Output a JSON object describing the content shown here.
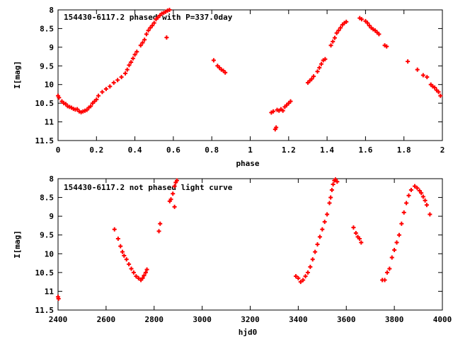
{
  "chart_data": [
    {
      "type": "scatter",
      "title": "154430-6117.2 phased with P=337.0day",
      "xlabel": "phase",
      "ylabel": "I[mag]",
      "xlim": [
        0,
        2
      ],
      "ylim": [
        11.5,
        8
      ],
      "y_inverted": true,
      "xticks": [
        "0",
        "0.2",
        "0.4",
        "0.6",
        "0.8",
        "1",
        "1.2",
        "1.4",
        "1.6",
        "1.8",
        "2"
      ],
      "xtick_values": [
        0,
        0.2,
        0.4,
        0.6,
        0.8,
        1,
        1.2,
        1.4,
        1.6,
        1.8,
        2
      ],
      "yticks": [
        "8",
        "8.5",
        "9",
        "9.5",
        "10",
        "10.5",
        "11",
        "11.5"
      ],
      "ytick_values": [
        8,
        8.5,
        9,
        9.5,
        10,
        10.5,
        11,
        11.5
      ],
      "color": "#ff0000",
      "points": [
        [
          0.0,
          10.3
        ],
        [
          0.005,
          10.35
        ],
        [
          0.02,
          10.45
        ],
        [
          0.03,
          10.5
        ],
        [
          0.04,
          10.52
        ],
        [
          0.05,
          10.58
        ],
        [
          0.06,
          10.6
        ],
        [
          0.07,
          10.62
        ],
        [
          0.08,
          10.65
        ],
        [
          0.09,
          10.67
        ],
        [
          0.1,
          10.66
        ],
        [
          0.11,
          10.72
        ],
        [
          0.12,
          10.74
        ],
        [
          0.13,
          10.72
        ],
        [
          0.14,
          10.7
        ],
        [
          0.15,
          10.68
        ],
        [
          0.16,
          10.62
        ],
        [
          0.17,
          10.58
        ],
        [
          0.18,
          10.5
        ],
        [
          0.19,
          10.45
        ],
        [
          0.2,
          10.4
        ],
        [
          0.21,
          10.3
        ],
        [
          0.23,
          10.2
        ],
        [
          0.25,
          10.12
        ],
        [
          0.27,
          10.05
        ],
        [
          0.29,
          9.95
        ],
        [
          0.31,
          9.88
        ],
        [
          0.33,
          9.8
        ],
        [
          0.35,
          9.7
        ],
        [
          0.36,
          9.6
        ],
        [
          0.37,
          9.48
        ],
        [
          0.38,
          9.4
        ],
        [
          0.39,
          9.3
        ],
        [
          0.4,
          9.2
        ],
        [
          0.41,
          9.12
        ],
        [
          0.43,
          8.95
        ],
        [
          0.44,
          8.88
        ],
        [
          0.45,
          8.8
        ],
        [
          0.46,
          8.65
        ],
        [
          0.47,
          8.55
        ],
        [
          0.48,
          8.48
        ],
        [
          0.49,
          8.42
        ],
        [
          0.5,
          8.35
        ],
        [
          0.51,
          8.25
        ],
        [
          0.52,
          8.2
        ],
        [
          0.53,
          8.15
        ],
        [
          0.54,
          8.1
        ],
        [
          0.55,
          8.08
        ],
        [
          0.56,
          8.05
        ],
        [
          0.565,
          8.74
        ],
        [
          0.57,
          8.02
        ],
        [
          0.58,
          8.0
        ],
        [
          0.81,
          9.35
        ],
        [
          0.83,
          9.5
        ],
        [
          0.84,
          9.55
        ],
        [
          0.85,
          9.6
        ],
        [
          0.86,
          9.63
        ],
        [
          0.87,
          9.68
        ],
        [
          1.11,
          10.75
        ],
        [
          1.12,
          10.72
        ],
        [
          1.13,
          11.2
        ],
        [
          1.135,
          11.15
        ],
        [
          1.14,
          10.68
        ],
        [
          1.15,
          10.7
        ],
        [
          1.16,
          10.66
        ],
        [
          1.17,
          10.7
        ],
        [
          1.18,
          10.6
        ],
        [
          1.19,
          10.55
        ],
        [
          1.2,
          10.5
        ],
        [
          1.21,
          10.45
        ],
        [
          1.3,
          9.95
        ],
        [
          1.31,
          9.9
        ],
        [
          1.32,
          9.85
        ],
        [
          1.33,
          9.78
        ],
        [
          1.35,
          9.65
        ],
        [
          1.36,
          9.55
        ],
        [
          1.37,
          9.45
        ],
        [
          1.38,
          9.35
        ],
        [
          1.39,
          9.32
        ],
        [
          1.42,
          8.95
        ],
        [
          1.43,
          8.85
        ],
        [
          1.44,
          8.75
        ],
        [
          1.45,
          8.62
        ],
        [
          1.46,
          8.55
        ],
        [
          1.47,
          8.48
        ],
        [
          1.48,
          8.4
        ],
        [
          1.49,
          8.35
        ],
        [
          1.5,
          8.32
        ],
        [
          1.57,
          8.22
        ],
        [
          1.58,
          8.25
        ],
        [
          1.6,
          8.3
        ],
        [
          1.61,
          8.35
        ],
        [
          1.62,
          8.42
        ],
        [
          1.63,
          8.48
        ],
        [
          1.64,
          8.52
        ],
        [
          1.65,
          8.55
        ],
        [
          1.66,
          8.6
        ],
        [
          1.67,
          8.65
        ],
        [
          1.7,
          8.95
        ],
        [
          1.71,
          8.98
        ],
        [
          1.82,
          9.38
        ],
        [
          1.87,
          9.6
        ],
        [
          1.9,
          9.75
        ],
        [
          1.92,
          9.8
        ],
        [
          1.94,
          10.0
        ],
        [
          1.95,
          10.05
        ],
        [
          1.96,
          10.08
        ],
        [
          1.97,
          10.15
        ],
        [
          1.98,
          10.2
        ],
        [
          1.99,
          10.3
        ]
      ]
    },
    {
      "type": "scatter",
      "title": "154430-6117.2 not phased light curve",
      "xlabel": "hjd0",
      "ylabel": "I[mag]",
      "xlim": [
        2400,
        4000
      ],
      "ylim": [
        11.5,
        8
      ],
      "y_inverted": true,
      "xticks": [
        "2400",
        "2600",
        "2800",
        "3000",
        "3200",
        "3400",
        "3600",
        "3800",
        "4000"
      ],
      "xtick_values": [
        2400,
        2600,
        2800,
        3000,
        3200,
        3400,
        3600,
        3800,
        4000
      ],
      "yticks": [
        "8",
        "8.5",
        "9",
        "9.5",
        "10",
        "10.5",
        "11",
        "11.5"
      ],
      "ytick_values": [
        8,
        8.5,
        9,
        9.5,
        10,
        10.5,
        11,
        11.5
      ],
      "color": "#ff0000",
      "points": [
        [
          2400,
          11.15
        ],
        [
          2402,
          11.2
        ],
        [
          2635,
          9.35
        ],
        [
          2650,
          9.6
        ],
        [
          2660,
          9.8
        ],
        [
          2668,
          9.95
        ],
        [
          2675,
          10.05
        ],
        [
          2685,
          10.15
        ],
        [
          2695,
          10.28
        ],
        [
          2705,
          10.4
        ],
        [
          2715,
          10.5
        ],
        [
          2725,
          10.6
        ],
        [
          2735,
          10.65
        ],
        [
          2745,
          10.7
        ],
        [
          2752,
          10.65
        ],
        [
          2758,
          10.58
        ],
        [
          2765,
          10.5
        ],
        [
          2770,
          10.42
        ],
        [
          2820,
          9.4
        ],
        [
          2825,
          9.2
        ],
        [
          2865,
          8.6
        ],
        [
          2870,
          8.55
        ],
        [
          2878,
          8.4
        ],
        [
          2885,
          8.2
        ],
        [
          2890,
          8.1
        ],
        [
          2895,
          8.05
        ],
        [
          2885,
          8.75
        ],
        [
          3390,
          10.6
        ],
        [
          3400,
          10.65
        ],
        [
          3410,
          10.75
        ],
        [
          3420,
          10.7
        ],
        [
          3430,
          10.6
        ],
        [
          3440,
          10.5
        ],
        [
          3450,
          10.35
        ],
        [
          3460,
          10.15
        ],
        [
          3470,
          9.95
        ],
        [
          3480,
          9.75
        ],
        [
          3490,
          9.55
        ],
        [
          3500,
          9.35
        ],
        [
          3510,
          9.15
        ],
        [
          3520,
          8.95
        ],
        [
          3530,
          8.65
        ],
        [
          3535,
          8.5
        ],
        [
          3540,
          8.3
        ],
        [
          3545,
          8.15
        ],
        [
          3550,
          8.05
        ],
        [
          3555,
          8.02
        ],
        [
          3562,
          8.08
        ],
        [
          3630,
          9.3
        ],
        [
          3640,
          9.45
        ],
        [
          3648,
          9.55
        ],
        [
          3655,
          9.6
        ],
        [
          3662,
          9.7
        ],
        [
          3750,
          10.7
        ],
        [
          3760,
          10.7
        ],
        [
          3770,
          10.5
        ],
        [
          3780,
          10.4
        ],
        [
          3790,
          10.1
        ],
        [
          3800,
          9.9
        ],
        [
          3810,
          9.7
        ],
        [
          3820,
          9.5
        ],
        [
          3830,
          9.2
        ],
        [
          3840,
          8.9
        ],
        [
          3850,
          8.65
        ],
        [
          3860,
          8.45
        ],
        [
          3870,
          8.3
        ],
        [
          3885,
          8.2
        ],
        [
          3895,
          8.25
        ],
        [
          3905,
          8.32
        ],
        [
          3912,
          8.38
        ],
        [
          3920,
          8.48
        ],
        [
          3928,
          8.58
        ],
        [
          3935,
          8.7
        ],
        [
          3948,
          8.95
        ]
      ]
    }
  ]
}
